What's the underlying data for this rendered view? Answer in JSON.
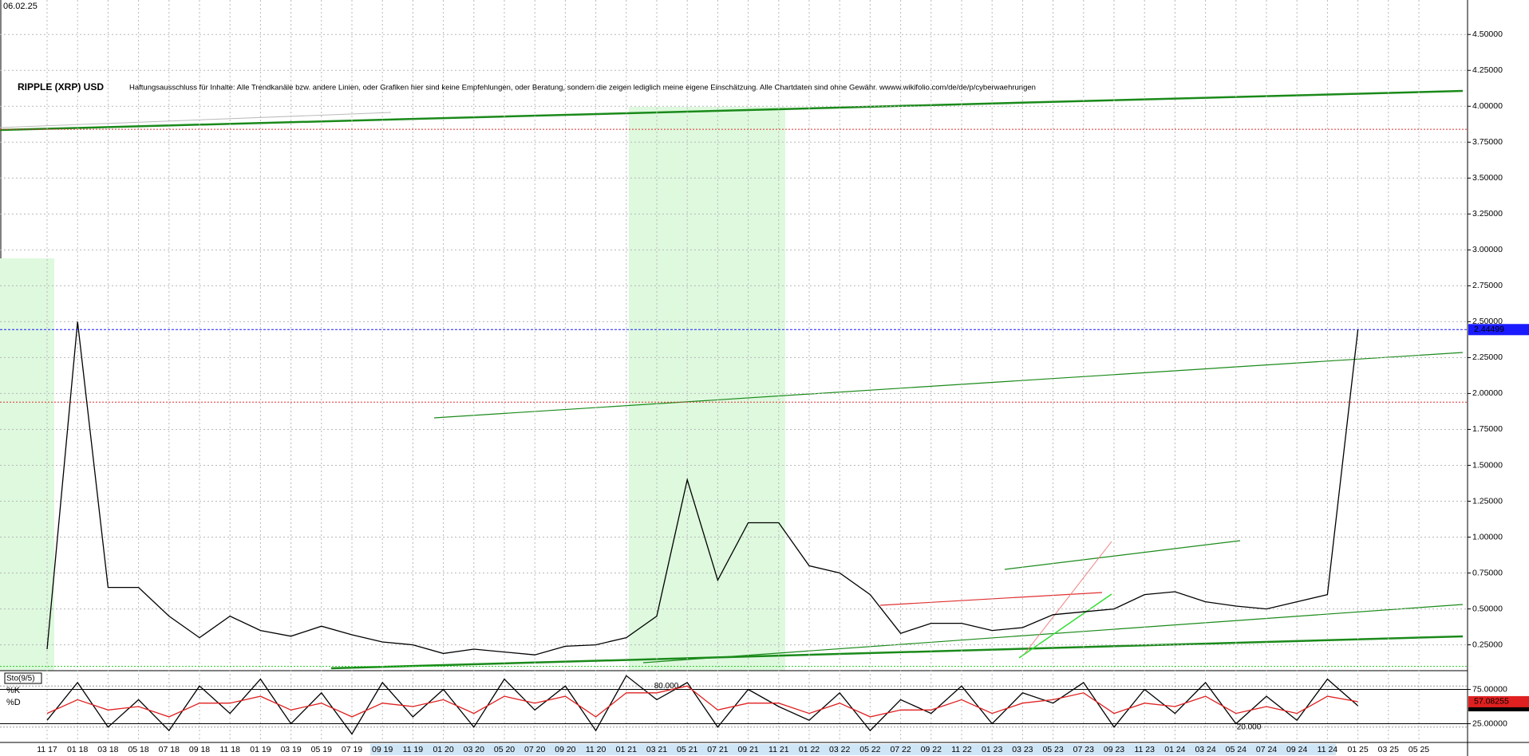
{
  "chart_data": [
    {
      "type": "line",
      "title": "RIPPLE (XRP) USD",
      "subtitle": "Haftungsausschluss für Inhalte: Alle Trendkanäle bzw. andere Linien, oder Grafiken hier sind keine Empfehlungen, oder Beratung, sondern die zeigen lediglich meine eigene Einschätzung. Alle Chartdaten sind ohne Gewähr. wwww.wikifolio.com/de/de/p/cyberwaehrungen",
      "date": "06.02.25",
      "categories": [
        "11 17",
        "01 18",
        "03 18",
        "05 18",
        "07 18",
        "09 18",
        "11 18",
        "01 19",
        "03 19",
        "05 19",
        "07 19",
        "09 19",
        "11 19",
        "01 20",
        "03 20",
        "05 20",
        "07 20",
        "09 20",
        "11 20",
        "01 21",
        "03 21",
        "05 21",
        "07 21",
        "09 21",
        "11 21",
        "01 22",
        "03 22",
        "05 22",
        "07 22",
        "09 22",
        "11 22",
        "01 23",
        "03 23",
        "05 23",
        "07 23",
        "09 23",
        "11 23",
        "01 24",
        "03 24",
        "05 24",
        "07 24",
        "09 24",
        "11 24",
        "01 25",
        "03 25",
        "05 25"
      ],
      "series": [
        {
          "color": "#000000",
          "values": [
            0.22,
            2.5,
            0.65,
            0.65,
            0.45,
            0.3,
            0.45,
            0.35,
            0.31,
            0.38,
            0.32,
            0.27,
            0.25,
            0.19,
            0.22,
            0.2,
            0.18,
            0.24,
            0.25,
            0.3,
            0.45,
            1.4,
            0.7,
            1.1,
            1.1,
            0.8,
            0.75,
            0.6,
            0.33,
            0.4,
            0.4,
            0.35,
            0.37,
            0.46,
            0.48,
            0.5,
            0.6,
            0.62,
            0.55,
            0.52,
            0.5,
            0.55,
            0.6,
            2.44499,
            null,
            null
          ]
        }
      ],
      "ylim": [
        0.07,
        4.74
      ],
      "yticks": [
        {
          "value": 0.25,
          "label": "0.25000"
        },
        {
          "value": 0.5,
          "label": "0.50000"
        },
        {
          "value": 0.75,
          "label": "0.75000"
        },
        {
          "value": 1,
          "label": "1.00000"
        },
        {
          "value": 1.25,
          "label": "1.25000"
        },
        {
          "value": 1.5,
          "label": "1.50000"
        },
        {
          "value": 1.75,
          "label": "1.75000"
        },
        {
          "value": 2,
          "label": "2.00000"
        },
        {
          "value": 2.25,
          "label": "2.25000"
        },
        {
          "value": 2.5,
          "label": "2.50000"
        },
        {
          "value": 2.75,
          "label": "2.75000"
        },
        {
          "value": 3,
          "label": "3.00000"
        },
        {
          "value": 3.25,
          "label": "3.25000"
        },
        {
          "value": 3.5,
          "label": "3.50000"
        },
        {
          "value": 3.75,
          "label": "3.75000"
        },
        {
          "value": 4,
          "label": "4.00000"
        },
        {
          "value": 4.25,
          "label": "4.25000"
        },
        {
          "value": 4.5,
          "label": "4.50000"
        }
      ],
      "grid": true,
      "reference_lines": [
        {
          "value": 3.84,
          "color": "#e03030"
        },
        {
          "value": 1.94,
          "color": "#e03030"
        },
        {
          "value": 0.1,
          "color": "#22cc22"
        }
      ]
    },
    {
      "type": "line",
      "title": "Sto(9/5)",
      "series": [
        {
          "name": "%K",
          "color": "#000000",
          "values": [
            30,
            85,
            20,
            60,
            15,
            80,
            40,
            90,
            25,
            70,
            10,
            85,
            35,
            75,
            20,
            90,
            45,
            80,
            15,
            95,
            60,
            85,
            20,
            75,
            50,
            30,
            70,
            15,
            60,
            40,
            80,
            25,
            70,
            55,
            85,
            20,
            75,
            40,
            85,
            25,
            65,
            30,
            90,
            51.19463,
            null,
            null
          ]
        },
        {
          "name": "%D",
          "color": "#e02020",
          "values": [
            40,
            60,
            45,
            50,
            35,
            55,
            55,
            65,
            45,
            55,
            35,
            55,
            50,
            60,
            40,
            65,
            55,
            65,
            35,
            70,
            70,
            80,
            45,
            55,
            55,
            40,
            55,
            35,
            45,
            45,
            60,
            40,
            55,
            60,
            70,
            40,
            55,
            50,
            65,
            40,
            50,
            40,
            65,
            57.08255,
            null,
            null
          ]
        }
      ],
      "ylim": [
        0,
        100
      ],
      "yticks": [
        {
          "value": 75,
          "label": "75.00000"
        },
        {
          "value": 25,
          "label": "25.00000"
        }
      ],
      "levels": [
        {
          "value": 80,
          "label": "80.000"
        },
        {
          "value": 20,
          "label": "20.000"
        }
      ]
    }
  ]
}
